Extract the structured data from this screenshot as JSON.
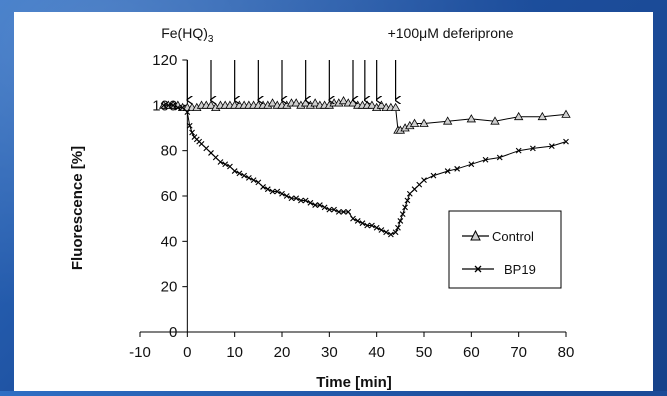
{
  "colors": {
    "background": "#1f56a8",
    "panel": "#ffffff",
    "marker": "#000000",
    "control_marker": "#b9b9b9"
  },
  "chart_data": {
    "type": "line",
    "xlabel": "Time [min]",
    "ylabel": "Fluorescence [%]",
    "xlim": [
      -10,
      80
    ],
    "ylim": [
      0,
      120
    ],
    "x_ticks": [
      -10,
      0,
      10,
      20,
      30,
      40,
      50,
      60,
      70,
      80
    ],
    "y_ticks": [
      0,
      20,
      40,
      60,
      80,
      100,
      120
    ],
    "grid": false,
    "legend_position": "inside-right",
    "annotations": [
      {
        "text": "Fe(HQ)3",
        "x": 0
      },
      {
        "text": "+100μM deferiprone",
        "x": 44
      }
    ],
    "addition_arrows_x": [
      0,
      5,
      10,
      15,
      20,
      25,
      30,
      35,
      37.5,
      40,
      44
    ],
    "series": [
      {
        "name": "Control",
        "marker": "triangle",
        "x": [
          -5,
          -4,
          -3,
          -2,
          -1,
          0,
          1,
          2,
          3,
          4,
          5,
          6,
          7,
          8,
          9,
          10,
          11,
          12,
          13,
          14,
          15,
          16,
          17,
          18,
          19,
          20,
          21,
          22,
          23,
          24,
          25,
          26,
          27,
          28,
          29,
          30,
          31,
          32,
          33,
          34,
          35,
          36,
          37,
          38,
          39,
          40,
          41,
          42,
          43,
          44,
          44.5,
          45,
          46,
          47,
          48,
          50,
          55,
          60,
          65,
          70,
          75,
          80
        ],
        "y": [
          100,
          100,
          100,
          100,
          99,
          99,
          99,
          99,
          100,
          100,
          100,
          99,
          100,
          100,
          100,
          100,
          100,
          100,
          100,
          100,
          100,
          100,
          100,
          101,
          100,
          100,
          100,
          101,
          101,
          100,
          101,
          100,
          101,
          100,
          100,
          100,
          101,
          101,
          102,
          101,
          101,
          100,
          100,
          100,
          100,
          99,
          100,
          99,
          99,
          99,
          89,
          89,
          90,
          91,
          92,
          92,
          93,
          94,
          93,
          95,
          95,
          96
        ]
      },
      {
        "name": "BP19",
        "marker": "cross",
        "x": [
          -5,
          -4,
          -3,
          -2,
          -1,
          0,
          0.5,
          1,
          1.5,
          2,
          2.5,
          3,
          4,
          5,
          6,
          7,
          8,
          9,
          10,
          11,
          12,
          13,
          14,
          15,
          16,
          17,
          18,
          19,
          20,
          21,
          22,
          23,
          24,
          25,
          26,
          27,
          28,
          29,
          30,
          31,
          32,
          33,
          34,
          35,
          36,
          37,
          38,
          39,
          40,
          41,
          42,
          43,
          44,
          44.5,
          45,
          45.5,
          46,
          46.5,
          47,
          48,
          49,
          50,
          52,
          55,
          57,
          60,
          63,
          66,
          70,
          73,
          77,
          80
        ],
        "y": [
          100,
          100,
          100,
          99,
          99,
          97,
          91,
          88,
          86,
          85,
          84,
          83,
          81,
          79,
          77,
          75,
          74,
          73,
          71,
          70,
          69,
          68,
          67,
          66,
          64,
          63,
          62,
          62,
          61,
          60,
          59,
          59,
          58,
          58,
          57,
          56,
          56,
          55,
          54,
          54,
          53,
          53,
          53,
          50,
          49,
          48,
          47,
          47,
          46,
          45,
          44,
          43,
          44,
          46,
          49,
          52,
          55,
          58,
          61,
          63,
          65,
          67,
          69,
          71,
          72,
          74,
          76,
          77,
          80,
          81,
          82,
          84
        ]
      }
    ]
  }
}
